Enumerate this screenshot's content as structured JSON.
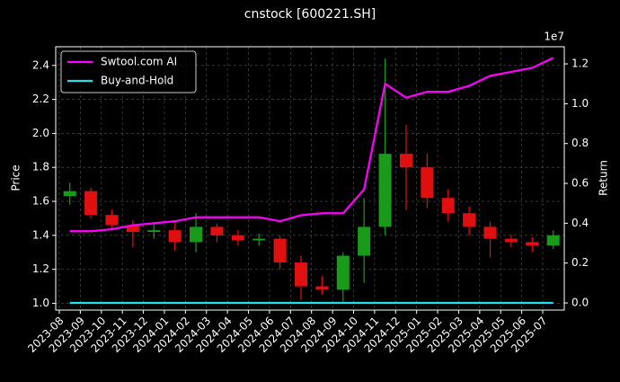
{
  "chart_data": {
    "type": "candlestick",
    "title": "cnstock [600221.SH]",
    "ylabel": "Price",
    "y2label": "Return",
    "y2_offset_label": "1e7",
    "categories": [
      "2023-08",
      "2023-09",
      "2023-10",
      "2023-11",
      "2023-12",
      "2024-01",
      "2024-02",
      "2024-03",
      "2024-04",
      "2024-05",
      "2024-06",
      "2024-07",
      "2024-08",
      "2024-09",
      "2024-10",
      "2024-11",
      "2024-12",
      "2025-01",
      "2025-02",
      "2025-03",
      "2025-04",
      "2025-05",
      "2025-06",
      "2025-07"
    ],
    "open": [
      1.63,
      1.66,
      1.52,
      1.46,
      1.42,
      1.43,
      1.36,
      1.45,
      1.4,
      1.37,
      1.38,
      1.24,
      1.1,
      1.08,
      1.28,
      1.45,
      1.88,
      1.8,
      1.62,
      1.53,
      1.45,
      1.38,
      1.36,
      1.34
    ],
    "high": [
      1.71,
      1.68,
      1.55,
      1.49,
      1.48,
      1.47,
      1.53,
      1.47,
      1.43,
      1.41,
      1.4,
      1.28,
      1.16,
      1.3,
      1.62,
      2.44,
      2.05,
      1.88,
      1.67,
      1.57,
      1.48,
      1.4,
      1.39,
      1.43
    ],
    "low": [
      1.58,
      1.5,
      1.44,
      1.33,
      1.38,
      1.31,
      1.3,
      1.36,
      1.34,
      1.34,
      1.2,
      1.02,
      1.05,
      1.01,
      1.12,
      1.4,
      1.55,
      1.56,
      1.48,
      1.4,
      1.27,
      1.33,
      1.3,
      1.32
    ],
    "close": [
      1.66,
      1.52,
      1.46,
      1.42,
      1.43,
      1.36,
      1.45,
      1.4,
      1.37,
      1.38,
      1.24,
      1.1,
      1.08,
      1.28,
      1.45,
      1.88,
      1.8,
      1.62,
      1.53,
      1.45,
      1.38,
      1.36,
      1.34,
      1.4
    ],
    "up_color": "#1a9a1a",
    "down_color": "#e01010",
    "ylim": [
      0.96,
      2.51
    ],
    "yticks": [
      {
        "value": 1.0,
        "label": "1.0"
      },
      1.2,
      1.4,
      1.6,
      1.8,
      {
        "value": 2.0,
        "label": "2.0"
      },
      2.2,
      2.4
    ],
    "y2lim": [
      -0.036,
      1.286
    ],
    "y2ticks": [
      {
        "value": 0,
        "label": "0.0"
      },
      0.2,
      0.4,
      0.6,
      0.8,
      {
        "value": 1,
        "label": "1.0"
      },
      1.2
    ],
    "series": [
      {
        "name": "Swtool.com AI",
        "color": "#ff00ff",
        "axis": "y2",
        "values": [
          0.36,
          0.36,
          0.37,
          0.39,
          0.4,
          0.41,
          0.43,
          0.43,
          0.43,
          0.43,
          0.41,
          0.44,
          0.45,
          0.45,
          0.57,
          1.1,
          1.03,
          1.06,
          1.06,
          1.09,
          1.14,
          1.16,
          1.18,
          1.23
        ]
      },
      {
        "name": "Buy-and-Hold",
        "color": "#22e0e8",
        "axis": "y2",
        "values": [
          0,
          0,
          0,
          0,
          0,
          0,
          0,
          0,
          0,
          0,
          0,
          0,
          0,
          0,
          0,
          0,
          0,
          0,
          0,
          0,
          0,
          0,
          0,
          0
        ]
      }
    ],
    "grid": true,
    "legend": "upper left"
  }
}
